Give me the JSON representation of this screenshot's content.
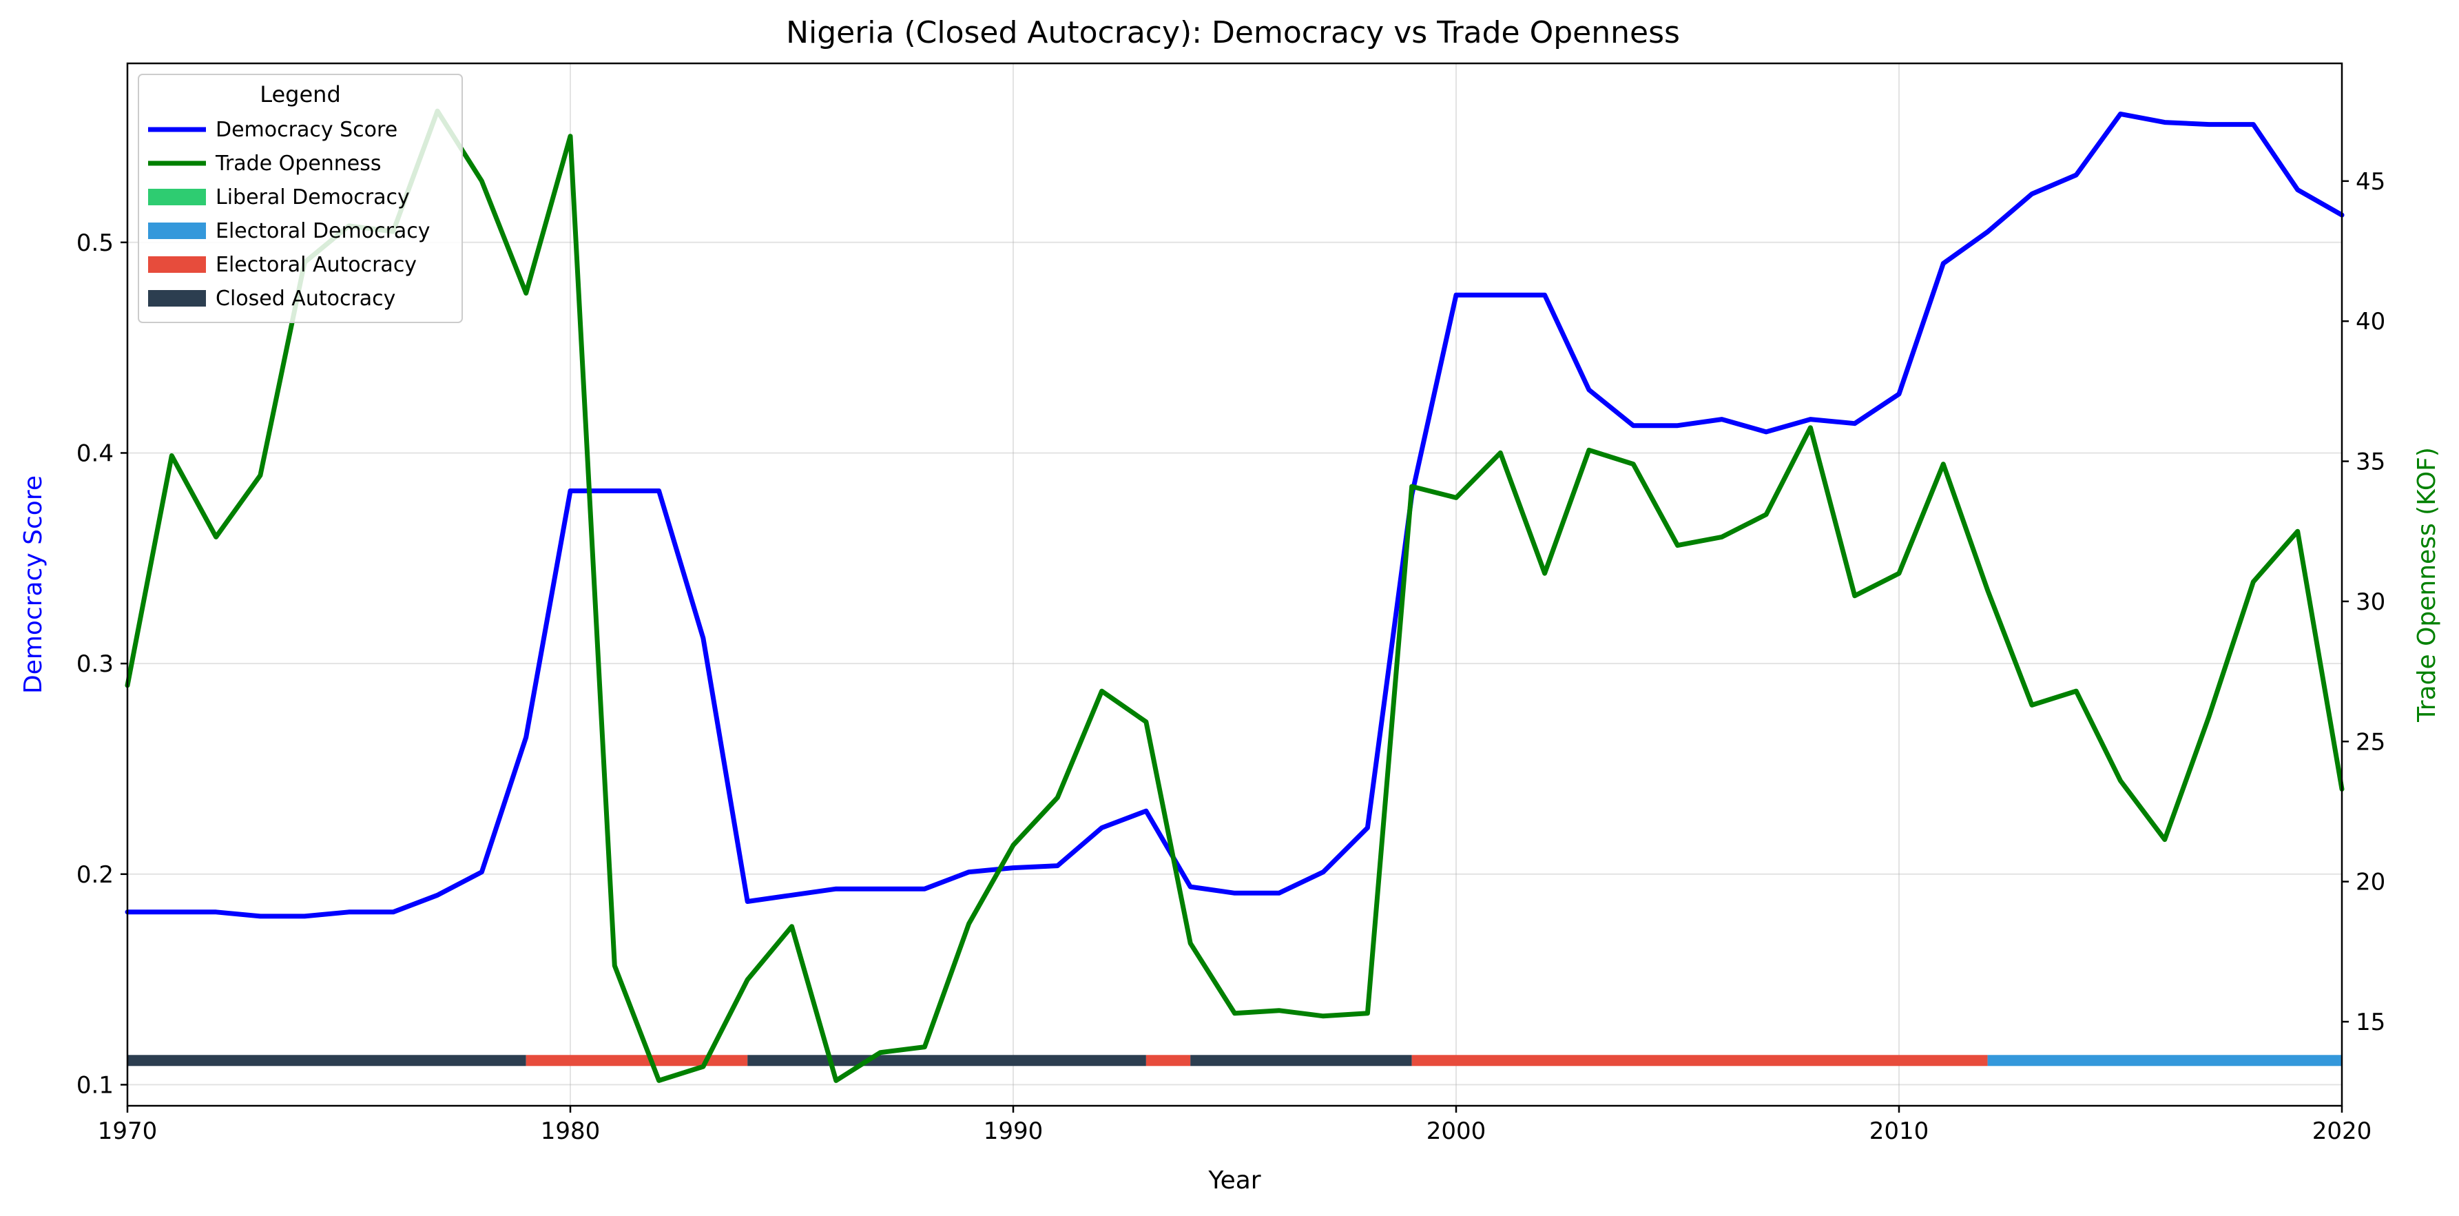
{
  "chart_data": {
    "type": "line",
    "title": "Nigeria (Closed Autocracy): Democracy vs Trade Openness",
    "xlabel": "Year",
    "ylabel_left": "Democracy Score",
    "ylabel_right": "Trade Openness (KOF)",
    "xlim": [
      1970,
      2020
    ],
    "ylim_left": [
      0.09,
      0.585
    ],
    "ylim_right": [
      12.0,
      49.2
    ],
    "x_ticks": [
      1970,
      1980,
      1990,
      2000,
      2010,
      2020
    ],
    "y_ticks_left": [
      0.1,
      0.2,
      0.3,
      0.4,
      0.5
    ],
    "y_ticks_right": [
      15,
      20,
      25,
      30,
      35,
      40,
      45
    ],
    "grid": true,
    "legend_title": "Legend",
    "legend_position": "top-left",
    "x": [
      1970,
      1971,
      1972,
      1973,
      1974,
      1975,
      1976,
      1977,
      1978,
      1979,
      1980,
      1981,
      1982,
      1983,
      1984,
      1985,
      1986,
      1987,
      1988,
      1989,
      1990,
      1991,
      1992,
      1993,
      1994,
      1995,
      1996,
      1997,
      1998,
      1999,
      2000,
      2001,
      2002,
      2003,
      2004,
      2005,
      2006,
      2007,
      2008,
      2009,
      2010,
      2011,
      2012,
      2013,
      2014,
      2015,
      2016,
      2017,
      2018,
      2019,
      2020
    ],
    "series": [
      {
        "name": "Democracy Score",
        "axis": "left",
        "color": "#0000ff",
        "values": [
          0.182,
          0.182,
          0.182,
          0.18,
          0.18,
          0.182,
          0.182,
          0.19,
          0.201,
          0.265,
          0.382,
          0.382,
          0.382,
          0.312,
          0.187,
          0.19,
          0.193,
          0.193,
          0.193,
          0.201,
          0.203,
          0.204,
          0.222,
          0.23,
          0.194,
          0.191,
          0.191,
          0.201,
          0.222,
          0.38,
          0.475,
          0.475,
          0.475,
          0.43,
          0.413,
          0.413,
          0.416,
          0.41,
          0.416,
          0.414,
          0.428,
          0.49,
          0.505,
          0.523,
          0.532,
          0.561,
          0.557,
          0.556,
          0.556,
          0.525,
          0.513
        ]
      },
      {
        "name": "Trade Openness",
        "axis": "right",
        "color": "#008000",
        "values": [
          27.0,
          35.2,
          32.3,
          34.5,
          42.1,
          43.4,
          43.2,
          47.5,
          45.0,
          41.0,
          46.6,
          17.0,
          12.9,
          13.4,
          16.5,
          18.4,
          12.9,
          13.9,
          14.1,
          18.5,
          21.3,
          23.0,
          26.8,
          25.7,
          17.8,
          15.3,
          15.4,
          15.2,
          15.3,
          34.1,
          33.7,
          35.3,
          31.0,
          35.4,
          34.9,
          32.0,
          32.3,
          33.1,
          36.2,
          30.2,
          31.0,
          34.9,
          30.4,
          26.3,
          26.8,
          23.6,
          21.5,
          25.9,
          30.7,
          32.5,
          23.3
        ]
      }
    ],
    "regime_legend": [
      {
        "name": "Liberal Democracy",
        "color": "#2ecc71"
      },
      {
        "name": "Electoral Democracy",
        "color": "#3498db"
      },
      {
        "name": "Electoral Autocracy",
        "color": "#e74c3c"
      },
      {
        "name": "Closed Autocracy",
        "color": "#2c3e50"
      }
    ],
    "regime_bar": [
      {
        "start": 1970,
        "end": 1979,
        "regime": "Closed Autocracy"
      },
      {
        "start": 1979,
        "end": 1984,
        "regime": "Electoral Autocracy"
      },
      {
        "start": 1984,
        "end": 1993,
        "regime": "Closed Autocracy"
      },
      {
        "start": 1993,
        "end": 1994,
        "regime": "Electoral Autocracy"
      },
      {
        "start": 1994,
        "end": 1999,
        "regime": "Closed Autocracy"
      },
      {
        "start": 1999,
        "end": 2012,
        "regime": "Electoral Autocracy"
      },
      {
        "start": 2012,
        "end": 2020,
        "regime": "Electoral Democracy"
      }
    ],
    "regime_bar_level": 0.1115
  }
}
